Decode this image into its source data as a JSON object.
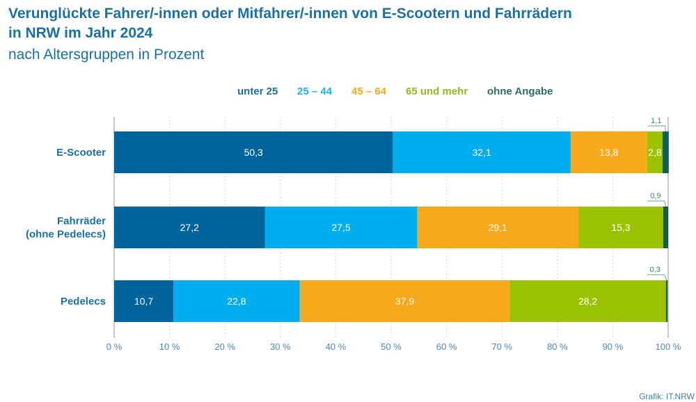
{
  "chart_data": {
    "type": "bar",
    "orientation": "horizontal",
    "stacked": true,
    "title": "Verunglückte Fahrer/-innen oder Mitfahrer/-innen von E-Scootern und Fahrrädern in NRW im Jahr 2024",
    "title_lines": [
      "Verunglückte Fahrer/-innen oder Mitfahrer/-innen von E-Scootern und Fahrrädern",
      "in NRW im Jahr 2024"
    ],
    "subtitle": "nach Altersgruppen in Prozent",
    "xlabel": "",
    "ylabel": "",
    "xlim": [
      0,
      100
    ],
    "grid": true,
    "legend_position": "top",
    "categories": [
      {
        "lines": [
          "E-Scooter"
        ]
      },
      {
        "lines": [
          "Fahrräder",
          "(ohne Pedelecs)"
        ]
      },
      {
        "lines": [
          "Pedelecs"
        ]
      }
    ],
    "series": [
      {
        "name": "unter 25",
        "color": "#00649c",
        "values": [
          50.3,
          27.2,
          10.7
        ],
        "labels": [
          "50,3",
          "27,2",
          "10,7"
        ]
      },
      {
        "name": "25 – 44",
        "color": "#00adef",
        "values": [
          32.1,
          27.5,
          22.8
        ],
        "labels": [
          "32,1",
          "27,5",
          "22,8"
        ]
      },
      {
        "name": "45 – 64",
        "color": "#f7a81b",
        "values": [
          13.8,
          29.1,
          37.9
        ],
        "labels": [
          "13,8",
          "29,1",
          "37,9"
        ]
      },
      {
        "name": "65 und mehr",
        "color": "#9bc200",
        "values": [
          2.8,
          15.3,
          28.2
        ],
        "labels": [
          "2,8",
          "15,3",
          "28,2"
        ]
      },
      {
        "name": "ohne Angabe",
        "color": "#135f56",
        "values": [
          1.1,
          0.9,
          0.3
        ],
        "labels": [
          "1,1",
          "0,9",
          "0,3"
        ],
        "label_style": "callout"
      }
    ],
    "x_ticks": [
      0,
      10,
      20,
      30,
      40,
      50,
      60,
      70,
      80,
      90,
      100
    ],
    "x_tick_labels": [
      "0 %",
      "10 %",
      "20 %",
      "30 %",
      "40 %",
      "50 %",
      "60 %",
      "70 %",
      "80 %",
      "90 %",
      "100 %"
    ]
  },
  "legend_text_colors": {
    "unter 25": "#1a6fa3",
    "25 – 44": "#1fb0ec",
    "45 – 64": "#f7a81b",
    "65 und mehr": "#8fbb1a",
    "ohne Angabe": "#2b6e66"
  },
  "source": "Grafik: IT.NRW"
}
